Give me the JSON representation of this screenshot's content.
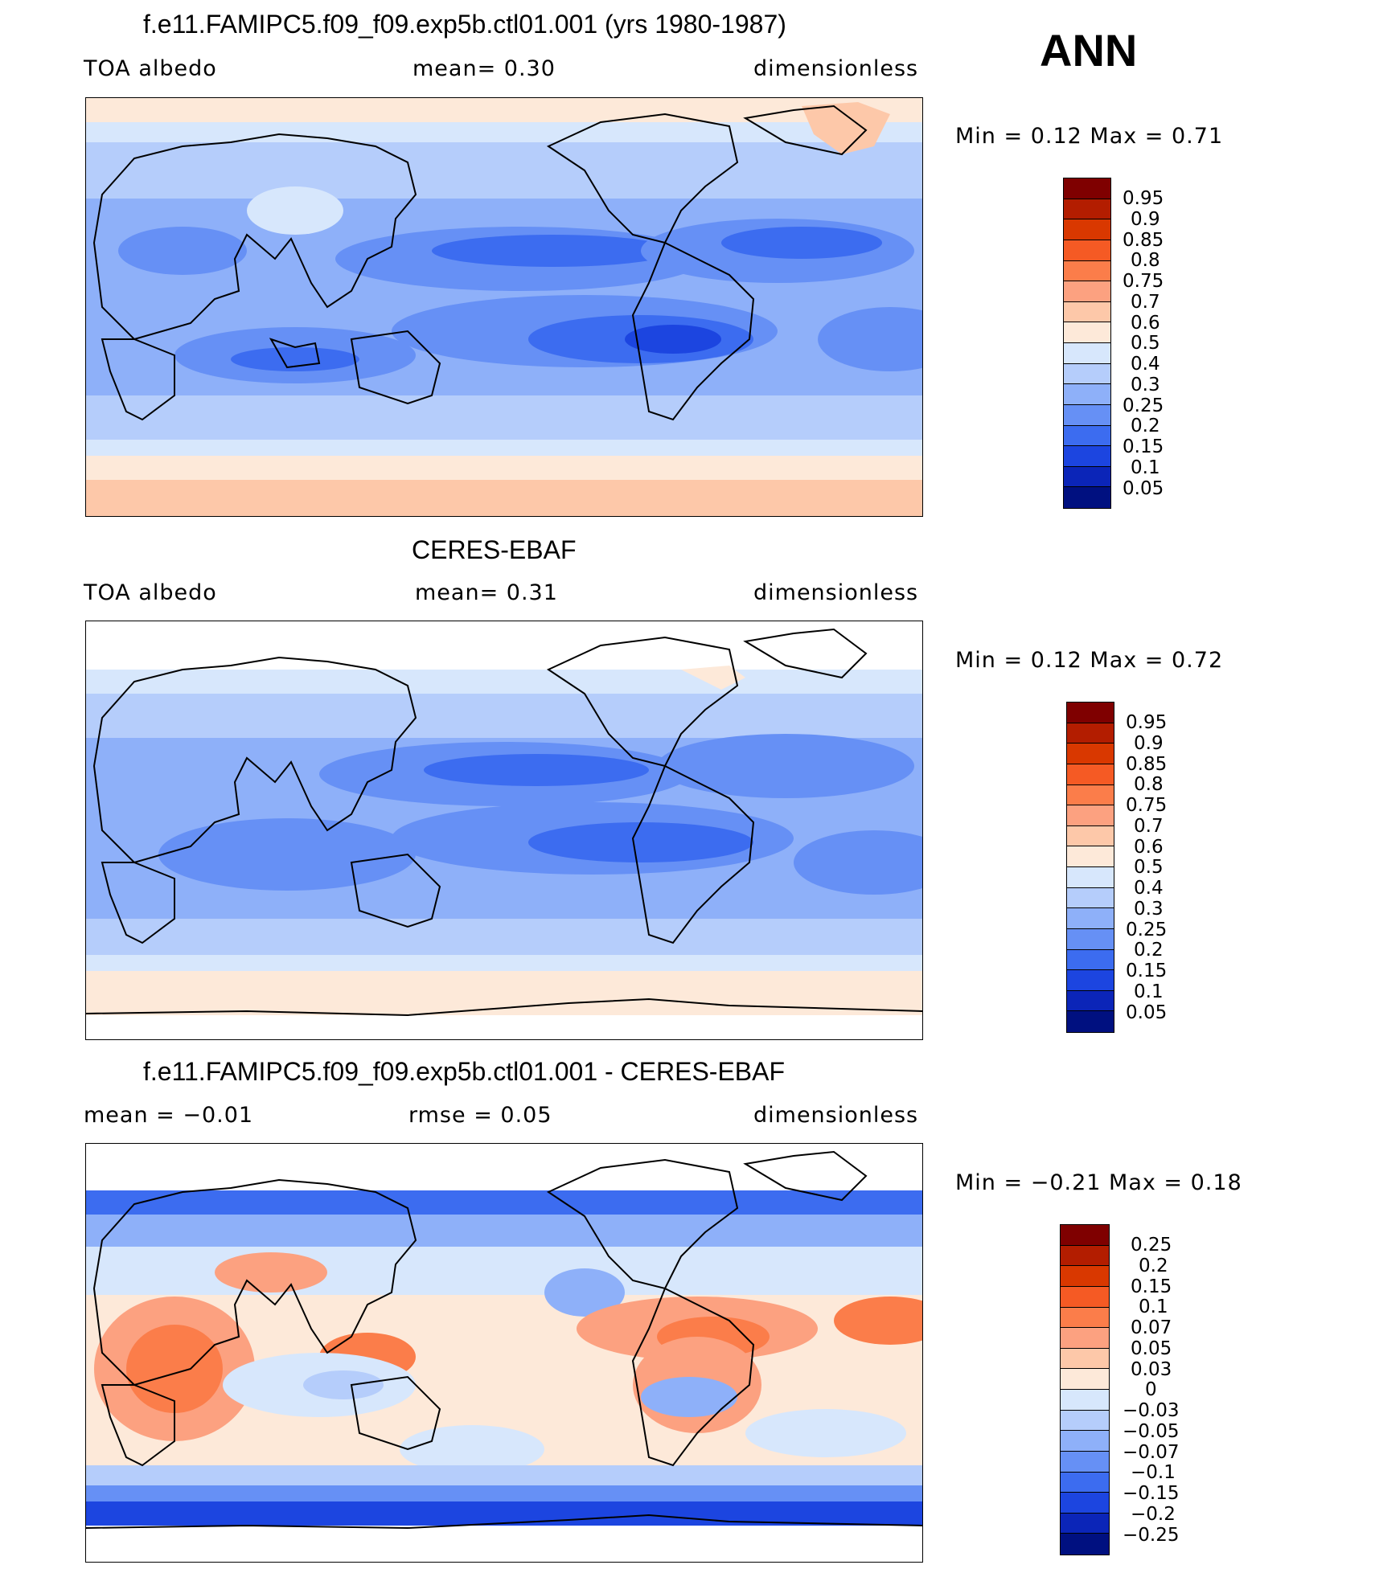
{
  "season": "ANN",
  "panels": [
    {
      "title": "f.e11.FAMIPC5.f09_f09.exp5b.ctl01.001 (yrs 1980-1987)",
      "left_label": "TOA  albedo",
      "center_label": "mean=     0.30",
      "right_label": "dimensionless",
      "minmax": "Min  =      0.12  Max  =      0.71",
      "colorbar_labels": [
        "0.95",
        "0.9",
        "0.85",
        "0.8",
        "0.75",
        "0.7",
        "0.6",
        "0.5",
        "0.4",
        "0.3",
        "0.25",
        "0.2",
        "0.15",
        "0.1",
        "0.05"
      ]
    },
    {
      "title": "CERES-EBAF",
      "left_label": "TOA  albedo",
      "center_label": "mean=     0.31",
      "right_label": "dimensionless",
      "minmax": "Min  =      0.12  Max  =      0.72",
      "colorbar_labels": [
        "0.95",
        "0.9",
        "0.85",
        "0.8",
        "0.75",
        "0.7",
        "0.6",
        "0.5",
        "0.4",
        "0.3",
        "0.25",
        "0.2",
        "0.15",
        "0.1",
        "0.05"
      ]
    },
    {
      "title": "f.e11.FAMIPC5.f09_f09.exp5b.ctl01.001 - CERES-EBAF",
      "left_label": "mean  =    −0.01",
      "center_label": "rmse  =     0.05",
      "right_label": "dimensionless",
      "minmax": "Min  =    −0.21  Max  =      0.18",
      "colorbar_labels": [
        "0.25",
        "0.2",
        "0.15",
        "0.1",
        "0.07",
        "0.05",
        "0.03",
        "0",
        "−0.03",
        "−0.05",
        "−0.07",
        "−0.1",
        "−0.15",
        "−0.2",
        "−0.25"
      ]
    }
  ],
  "colors": {
    "seq_palette": [
      "#7f0000",
      "#b31d00",
      "#d93800",
      "#f55a24",
      "#fb7d4a",
      "#fca180",
      "#fdc8a9",
      "#fde9d9",
      "#d7e7fc",
      "#b5cdfb",
      "#8eb0f9",
      "#6690f5",
      "#3c6cf0",
      "#1c45e0",
      "#0b25b8",
      "#001080"
    ],
    "diff_palette": [
      "#7f0000",
      "#b31d00",
      "#d93800",
      "#f55a24",
      "#fb7d4a",
      "#fca180",
      "#fdc8a9",
      "#fde9d9",
      "#d7e7fc",
      "#b5cdfb",
      "#8eb0f9",
      "#6690f5",
      "#3c6cf0",
      "#1c45e0",
      "#0b25b8",
      "#001080"
    ]
  }
}
